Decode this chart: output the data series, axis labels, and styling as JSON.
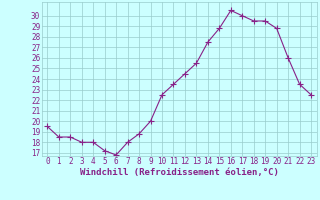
{
  "x": [
    0,
    1,
    2,
    3,
    4,
    5,
    6,
    7,
    8,
    9,
    10,
    11,
    12,
    13,
    14,
    15,
    16,
    17,
    18,
    19,
    20,
    21,
    22,
    23
  ],
  "y": [
    19.5,
    18.5,
    18.5,
    18.0,
    18.0,
    17.2,
    16.8,
    18.0,
    18.8,
    20.0,
    22.5,
    23.5,
    24.5,
    25.5,
    27.5,
    28.8,
    30.5,
    30.0,
    29.5,
    29.5,
    28.8,
    26.0,
    23.5,
    22.5
  ],
  "line_color": "#882288",
  "marker": "+",
  "markersize": 4,
  "linewidth": 0.8,
  "bg_color": "#ccffff",
  "grid_color": "#99cccc",
  "xlabel": "Windchill (Refroidissement éolien,°C)",
  "xlabel_color": "#882288",
  "xlabel_fontsize": 6.5,
  "tick_color": "#882288",
  "tick_fontsize": 5.5,
  "ylim_min": 17,
  "ylim_max": 31,
  "yticks": [
    17,
    18,
    19,
    20,
    21,
    22,
    23,
    24,
    25,
    26,
    27,
    28,
    29,
    30
  ],
  "xticks": [
    0,
    1,
    2,
    3,
    4,
    5,
    6,
    7,
    8,
    9,
    10,
    11,
    12,
    13,
    14,
    15,
    16,
    17,
    18,
    19,
    20,
    21,
    22,
    23
  ],
  "xlim_min": -0.5,
  "xlim_max": 23.5
}
